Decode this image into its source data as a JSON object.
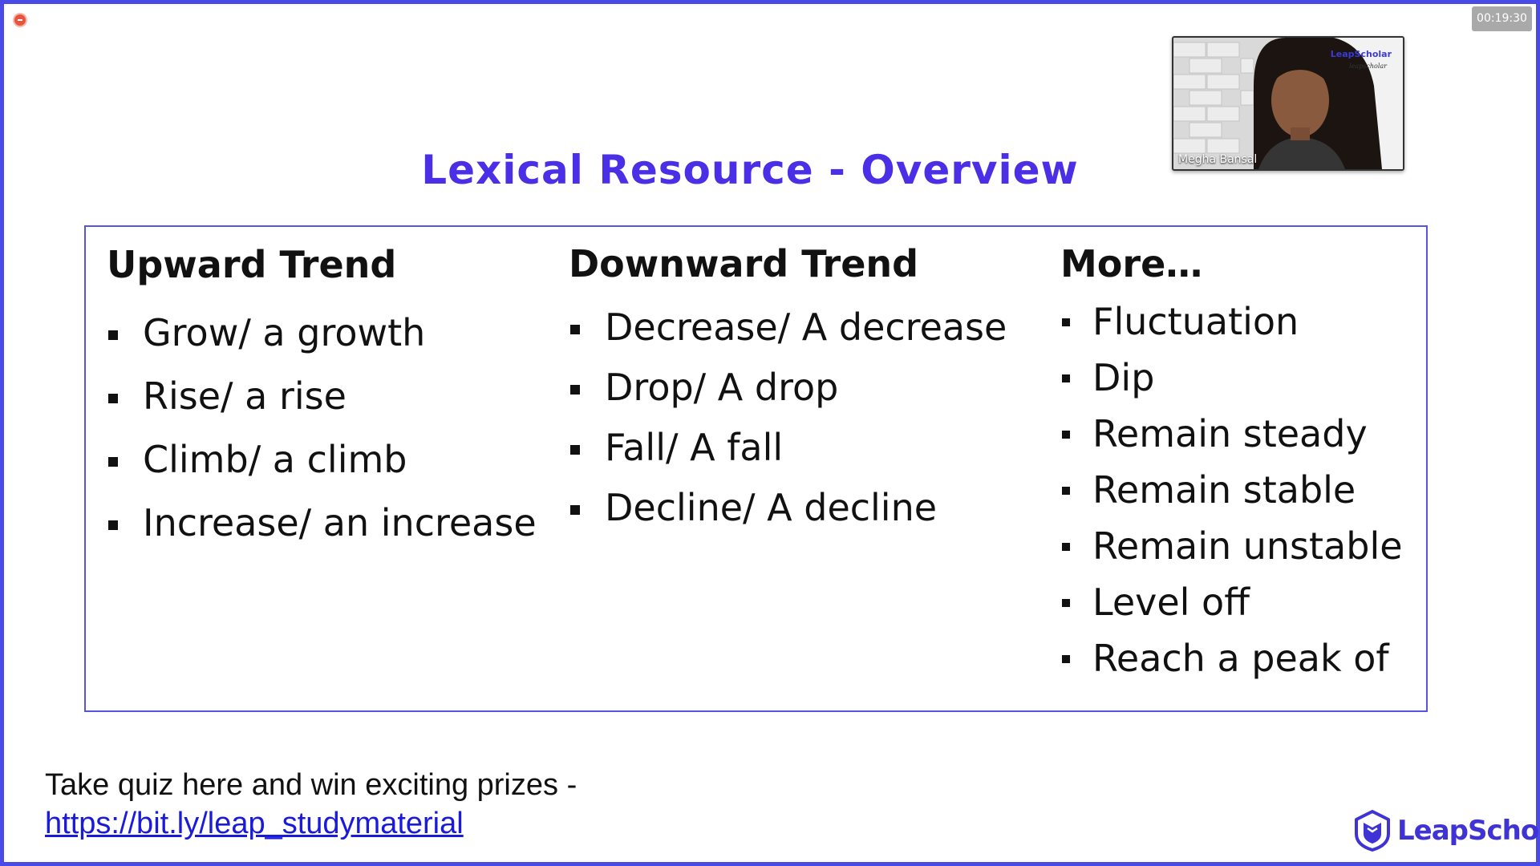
{
  "recording": {
    "timer": "00:19:30"
  },
  "video": {
    "participant_name": "Megha Bansal",
    "background_logo": "LeapScholar",
    "background_logo_sub": "leapscholar"
  },
  "slide": {
    "title": "Lexical Resource - Overview",
    "columns": [
      {
        "heading": "Upward Trend",
        "items": [
          "Grow/ a growth",
          "Rise/ a rise",
          "Climb/ a climb",
          "Increase/ an increase"
        ]
      },
      {
        "heading": "Downward Trend",
        "items": [
          "Decrease/ A decrease",
          "Drop/ A drop",
          "Fall/ A fall",
          "Decline/ A decline"
        ]
      },
      {
        "heading": "More…",
        "items": [
          "Fluctuation",
          "Dip",
          "Remain steady",
          "Remain stable",
          "Remain unstable",
          "Level off",
          "Reach a peak of"
        ]
      }
    ],
    "quiz_text": "Take quiz here and win exciting prizes -",
    "quiz_link": "https://bit.ly/leap_studymaterial",
    "brand_name": "LeapScholar"
  },
  "colors": {
    "frame_border": "#4a4ae6",
    "title": "#4a2fe6",
    "link": "#1a1adb",
    "brand": "#4033d6",
    "recording_dot": "#e8553f"
  },
  "icons": {
    "recording": "recording-dot-icon",
    "brand": "leapscholar-shield-logo-icon"
  }
}
